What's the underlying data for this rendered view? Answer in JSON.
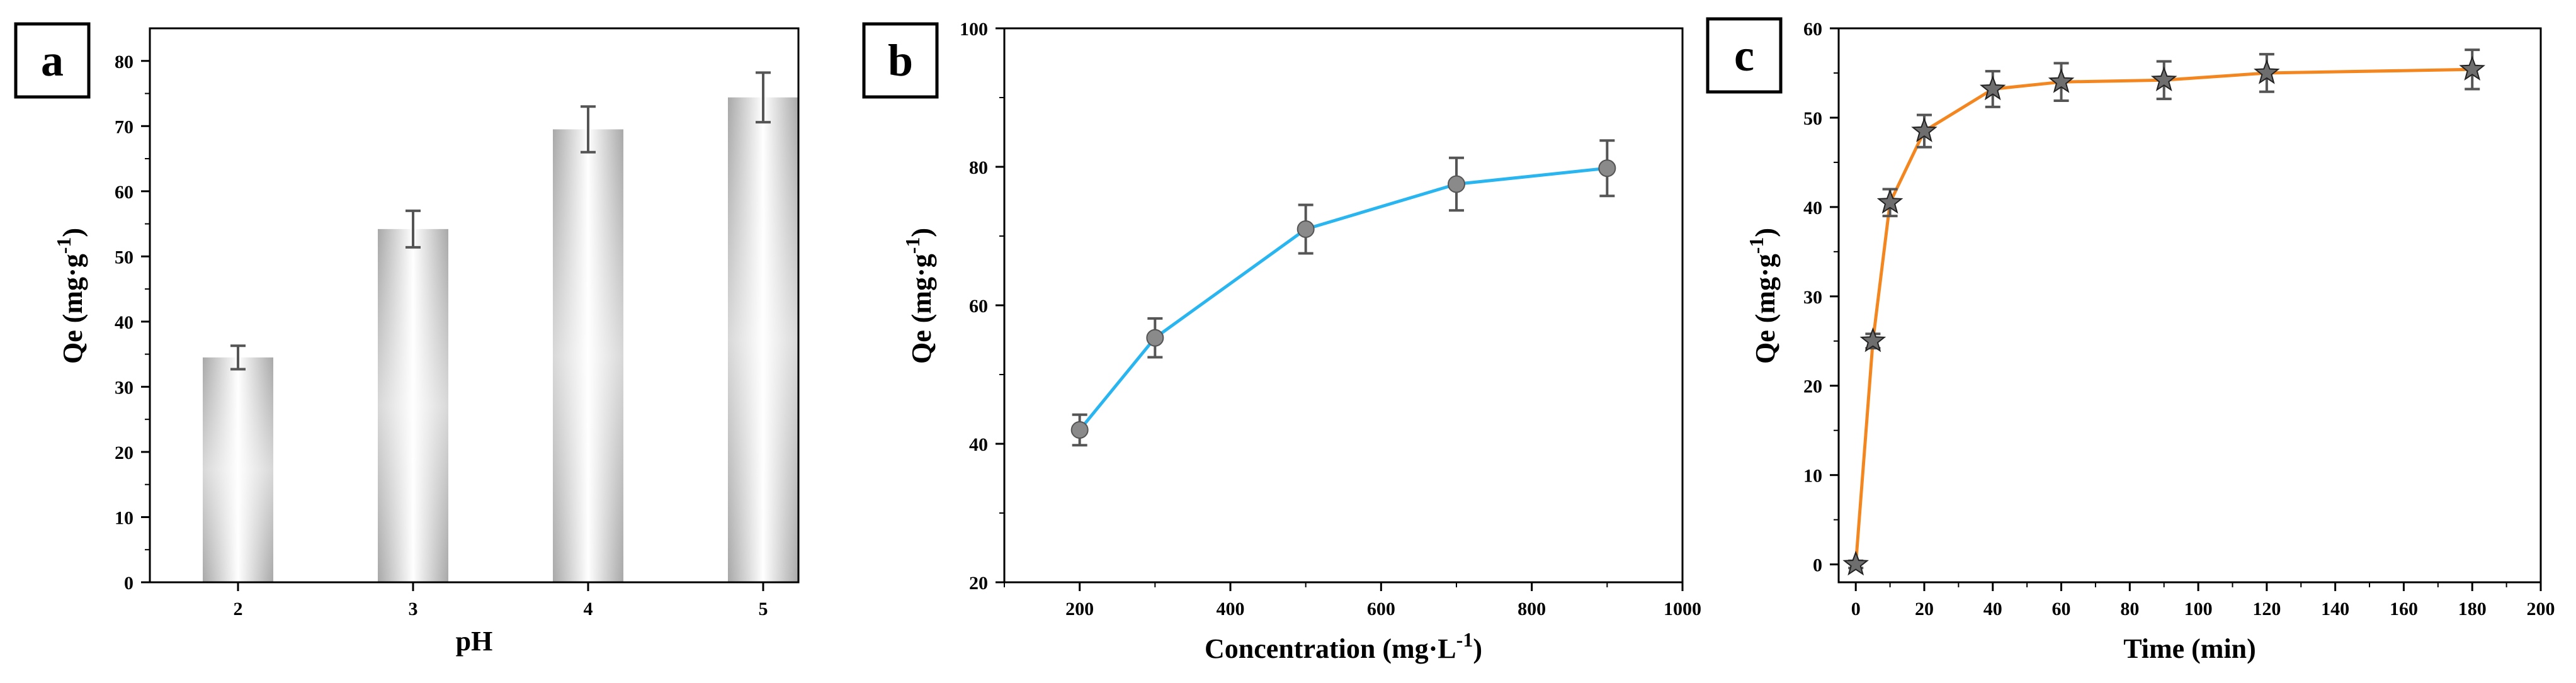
{
  "chart_data": [
    {
      "panel_label": "a",
      "type": "bar",
      "categories": [
        "2",
        "3",
        "4",
        "5"
      ],
      "values": [
        34.5,
        54.2,
        69.5,
        74.4
      ],
      "errors": [
        1.8,
        2.8,
        3.5,
        3.8
      ],
      "xlabel": "pH",
      "ylabel": "Qe (mg·g",
      "ylabel_sup": "-1",
      "ylabel_close": ")",
      "ylim": [
        0,
        85
      ],
      "yticks": [
        "0",
        "10",
        "20",
        "30",
        "40",
        "50",
        "60",
        "70",
        "80"
      ],
      "colors": {
        "bar_edge": "#a8a8a8",
        "bar_center": "#ffffff",
        "error": "#555555"
      }
    },
    {
      "panel_label": "b",
      "type": "line",
      "x": [
        200,
        300,
        500,
        700,
        900
      ],
      "y": [
        42.0,
        55.3,
        71.0,
        77.5,
        79.8
      ],
      "errors": [
        2.2,
        2.8,
        3.5,
        3.8,
        4.0
      ],
      "xlabel": "Concentration (mg·L",
      "xlabel_sup": "-1",
      "xlabel_close": ")",
      "ylabel": "Qe (mg·g",
      "ylabel_sup": "-1",
      "ylabel_close": ")",
      "xlim": [
        100,
        1000
      ],
      "ylim": [
        20,
        100
      ],
      "xticks": [
        "200",
        "400",
        "600",
        "800",
        "1000"
      ],
      "yticks": [
        "20",
        "40",
        "60",
        "80",
        "100"
      ],
      "colors": {
        "line": "#29b6f0",
        "marker": "#8a8a8a",
        "error": "#555555"
      }
    },
    {
      "panel_label": "c",
      "type": "line",
      "marker": "star",
      "x": [
        0,
        5,
        10,
        20,
        40,
        60,
        90,
        120,
        180
      ],
      "y": [
        0,
        25.0,
        40.5,
        48.5,
        53.2,
        54.0,
        54.2,
        55.0,
        55.4
      ],
      "errors": [
        0.4,
        0.8,
        1.5,
        1.8,
        2.0,
        2.1,
        2.1,
        2.1,
        2.2
      ],
      "xlabel": "Time (min)",
      "ylabel": "Qe (mg·g",
      "ylabel_sup": "-1",
      "ylabel_close": ")",
      "xlim": [
        -5,
        200
      ],
      "ylim": [
        -2,
        60
      ],
      "xticks": [
        "0",
        "20",
        "40",
        "60",
        "80",
        "100",
        "120",
        "140",
        "160",
        "180",
        "200"
      ],
      "yticks": [
        "0",
        "10",
        "20",
        "30",
        "40",
        "50",
        "60"
      ],
      "colors": {
        "line": "#f4861f",
        "marker": "#6e6e6e",
        "error": "#555555"
      }
    }
  ]
}
